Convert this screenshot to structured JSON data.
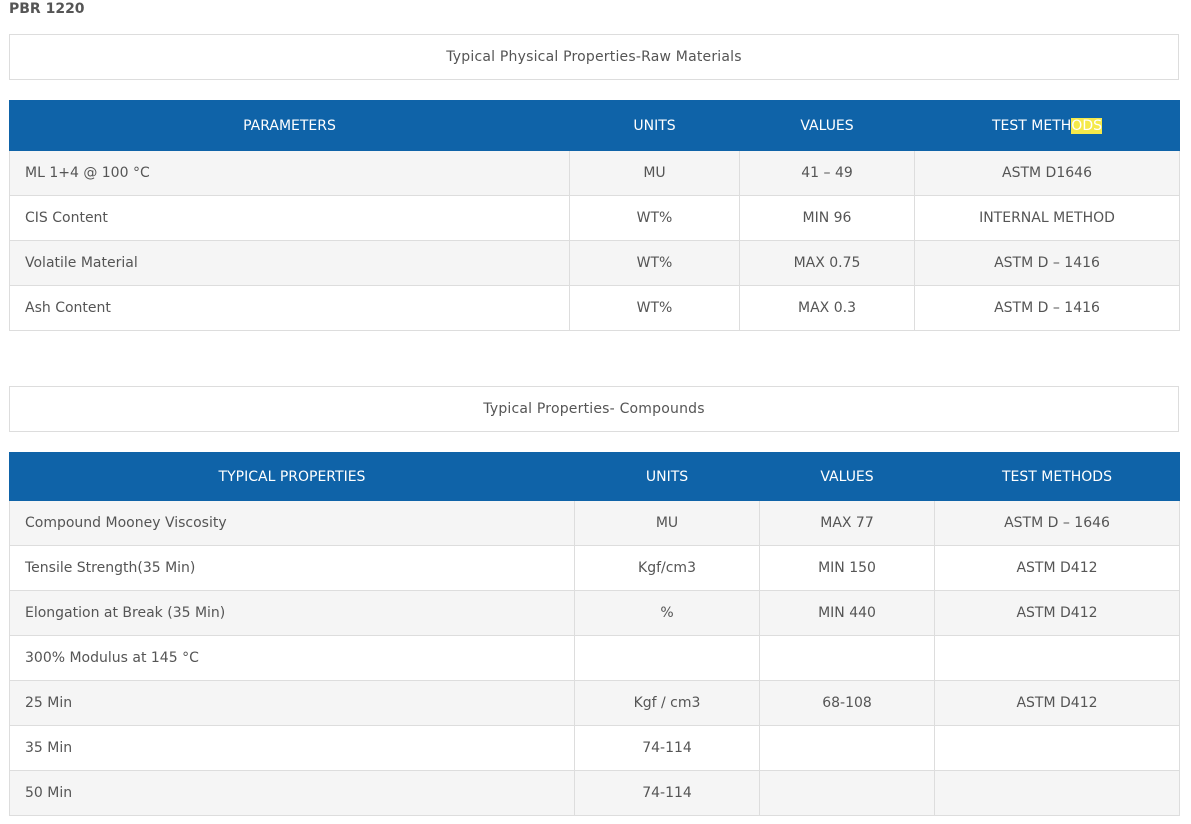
{
  "page_title": "PBR 1220",
  "section1": {
    "caption": "Typical Physical Properties-Raw Materials",
    "headers": [
      "PARAMETERS",
      "UNITS",
      "VALUES",
      "TEST METHODS"
    ],
    "rows": [
      [
        "ML 1+4 @ 100 °C",
        "MU",
        "41 – 49",
        "ASTM D1646"
      ],
      [
        "CIS Content",
        "WT%",
        "MIN 96",
        "INTERNAL METHOD"
      ],
      [
        "Volatile Material",
        "WT%",
        "MAX 0.75",
        "ASTM D – 1416"
      ],
      [
        "Ash Content",
        "WT%",
        "MAX 0.3",
        "ASTM D – 1416"
      ]
    ]
  },
  "section2": {
    "caption": "Typical Properties- Compounds",
    "headers": [
      "TYPICAL PROPERTIES",
      "UNITS",
      "VALUES",
      "TEST METHODS"
    ],
    "rows": [
      [
        "Compound Mooney Viscosity",
        "MU",
        "MAX 77",
        "ASTM D – 1646"
      ],
      [
        "Tensile Strength(35 Min)",
        "Kgf/cm3",
        "MIN 150",
        "ASTM D412"
      ],
      [
        "Elongation at Break (35 Min)",
        "%",
        "MIN 440",
        "ASTM D412"
      ],
      [
        "300% Modulus at 145 °C",
        "",
        "",
        ""
      ],
      [
        "25 Min",
        "Kgf / cm3",
        "68-108",
        "ASTM D412"
      ],
      [
        "35 Min",
        "74-114",
        "",
        ""
      ],
      [
        "50 Min",
        "74-114",
        "",
        ""
      ]
    ]
  },
  "colors": {
    "header_bg": "#0f63a8",
    "stripe": "#f5f5f5",
    "border": "#dddddd",
    "highlight": "#f5e94a"
  }
}
